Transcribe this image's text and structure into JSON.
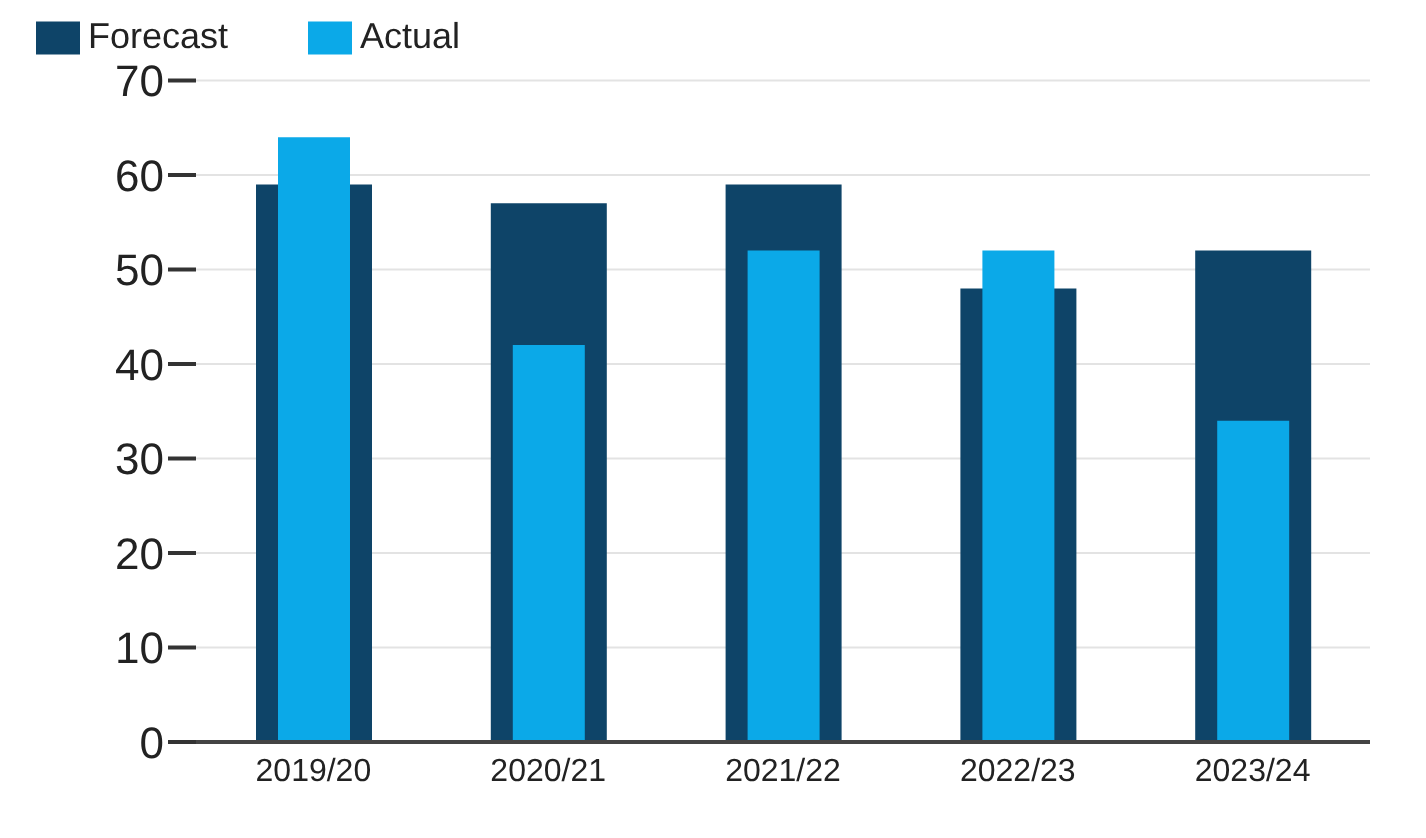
{
  "chart_data": {
    "type": "bar",
    "categories": [
      "2019/20",
      "2020/21",
      "2021/22",
      "2022/23",
      "2023/24"
    ],
    "series": [
      {
        "name": "Forecast",
        "color": "#0e4468",
        "values": [
          59,
          57,
          59,
          48,
          52
        ]
      },
      {
        "name": "Actual",
        "color": "#0ba9e8",
        "values": [
          64,
          42,
          52,
          52,
          34
        ]
      }
    ],
    "ylim": [
      0,
      70
    ],
    "yticks": [
      0,
      10,
      20,
      30,
      40,
      50,
      60,
      70
    ],
    "grid": "y",
    "legend": "top left"
  }
}
